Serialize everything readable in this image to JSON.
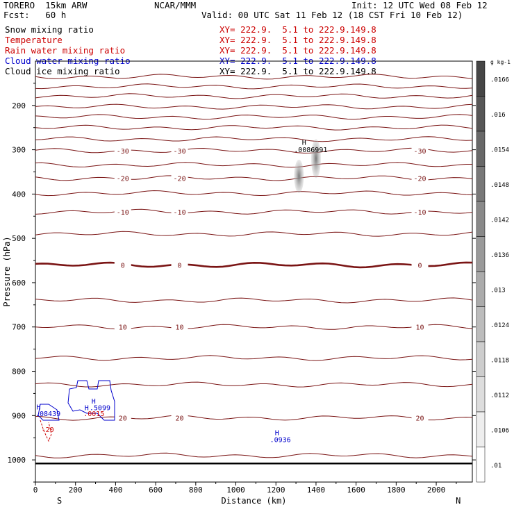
{
  "header": {
    "model": "TORERO  15km ARW",
    "forecast": "Fcst:   60 h",
    "org": "NCAR/MMM",
    "init": "Init: 12 UTC Wed 08 Feb 12",
    "valid": "Valid: 00 UTC Sat 11 Feb 12 (18 CST Fri 10 Feb 12)"
  },
  "fields": [
    {
      "name": "Snow mixing ratio",
      "xy": "XY= 222.9.  5.1 to 222.9.149.8",
      "color": "#000000",
      "xy_color": "#cc0000"
    },
    {
      "name": "Temperature",
      "xy": "XY= 222.9.  5.1 to 222.9.149.8",
      "color": "#cc0000",
      "xy_color": "#cc0000"
    },
    {
      "name": "Rain water mixing ratio",
      "xy": "XY= 222.9.  5.1 to 222.9.149.8",
      "color": "#cc0000",
      "xy_color": "#cc0000"
    },
    {
      "name": "Cloud water mixing ratio",
      "xy": "XY= 222.9.  5.1 to 222.9.149.8",
      "color": "#0000cc",
      "xy_color": "#0000cc"
    },
    {
      "name": "Cloud ice mixing ratio",
      "xy": "XY= 222.9.  5.1 to 222.9.149.8",
      "color": "#000000",
      "xy_color": "#000000"
    }
  ],
  "chart_data": {
    "type": "contour",
    "xlabel": "Distance (km)",
    "ylabel": "Pressure (hPa)",
    "xlim": [
      0,
      2180
    ],
    "ylim": [
      1050,
      100
    ],
    "x_ticks": [
      0,
      200,
      400,
      600,
      800,
      1000,
      1200,
      1400,
      1600,
      1800,
      2000
    ],
    "y_ticks": [
      200,
      300,
      400,
      500,
      600,
      700,
      800,
      900,
      1000
    ],
    "y_tick_labels": [
      "200",
      "300",
      "400",
      "500",
      "600",
      "700",
      "800",
      "900",
      "1000"
    ],
    "x_tick_labels": [
      "0",
      "200",
      "400",
      "600",
      "800",
      "1000",
      "1200",
      "1400",
      "1600",
      "1800",
      "2000"
    ],
    "x_end_labels": {
      "left": "S",
      "right": "N"
    },
    "temperature_contours": [
      {
        "p": 135,
        "label": ""
      },
      {
        "p": 157,
        "label": ""
      },
      {
        "p": 179,
        "label": ""
      },
      {
        "p": 203,
        "label": ""
      },
      {
        "p": 226,
        "label": ""
      },
      {
        "p": 250,
        "label": ""
      },
      {
        "p": 276,
        "label": ""
      },
      {
        "p": 302,
        "label": "-30"
      },
      {
        "p": 334,
        "label": ""
      },
      {
        "p": 364,
        "label": "-20"
      },
      {
        "p": 398,
        "label": ""
      },
      {
        "p": 440,
        "label": "-10"
      },
      {
        "p": 490,
        "label": ""
      },
      {
        "p": 560,
        "label": "0"
      },
      {
        "p": 640,
        "label": ""
      },
      {
        "p": 700,
        "label": "10"
      },
      {
        "p": 770,
        "label": ""
      },
      {
        "p": 830,
        "label": ""
      },
      {
        "p": 905,
        "label": "20"
      },
      {
        "p": 990,
        "label": ""
      }
    ],
    "surface_p": 1008,
    "annotations": [
      {
        "text": "H",
        "x": 1330,
        "p": 289,
        "color": "#000000"
      },
      {
        "text": ".0086991",
        "x": 1290,
        "p": 305,
        "color": "#000000"
      },
      {
        "text": "H",
        "x": 1195,
        "p": 944,
        "color": "#0000cc"
      },
      {
        "text": ".0936",
        "x": 1170,
        "p": 960,
        "color": "#0000cc"
      },
      {
        "text": "H",
        "x": 5,
        "p": 886,
        "color": "#0000cc"
      },
      {
        "text": ".08439",
        "x": 0,
        "p": 901,
        "color": "#0000cc"
      },
      {
        "text": "H",
        "x": 280,
        "p": 873,
        "color": "#0000cc"
      },
      {
        "text": "H",
        "x": 245,
        "p": 888,
        "color": "#0000cc"
      },
      {
        "text": ".5099",
        "x": 270,
        "p": 888,
        "color": "#0000cc"
      },
      {
        "text": ".0015",
        "x": 240,
        "p": 901,
        "color": "#cc0000"
      },
      {
        "text": "-20",
        "x": 30,
        "p": 937,
        "color": "#cc0000"
      }
    ],
    "colorbar": {
      "unit": "g kg-1",
      "levels": [
        ".0166",
        ".016",
        ".0154",
        ".0148",
        ".0142",
        ".0136",
        ".013",
        ".0124",
        ".0118",
        ".0112",
        ".0106",
        ".01"
      ]
    }
  }
}
